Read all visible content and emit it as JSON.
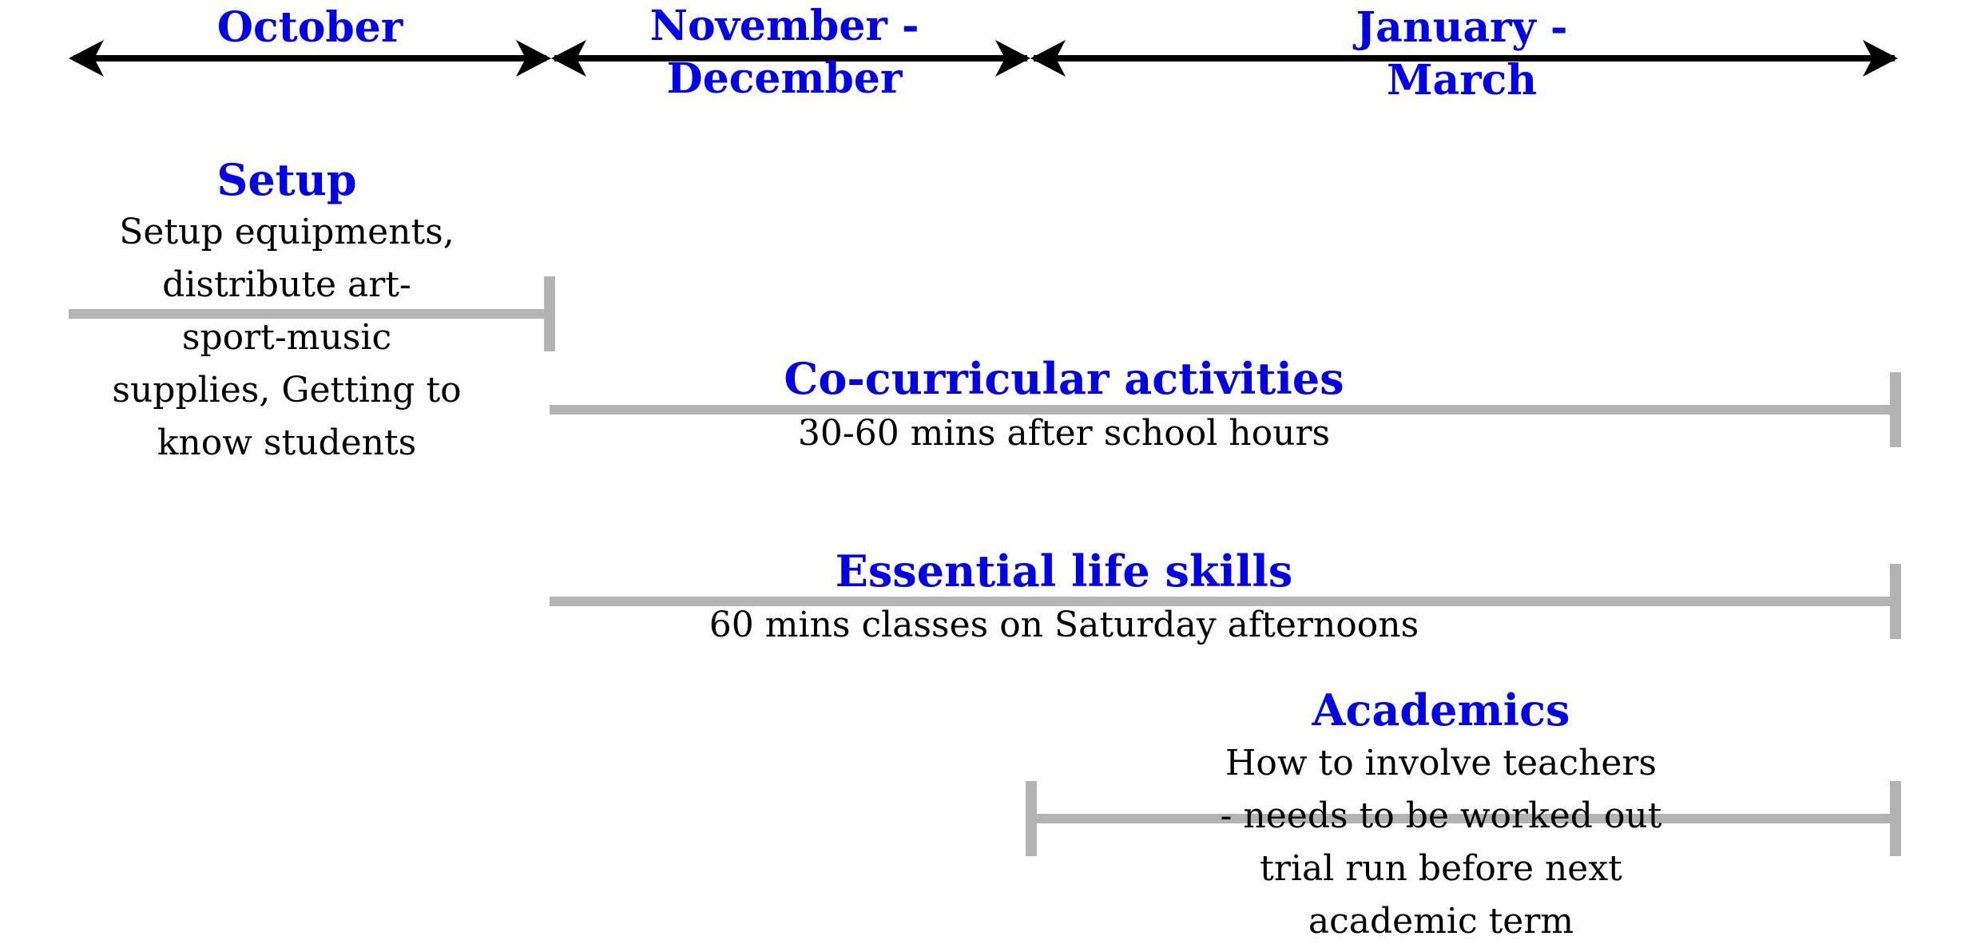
{
  "colors": {
    "heading": "#0000ee",
    "body_text": "#000000",
    "timeline_axis": "#000000",
    "phase_bar": "#b3b3b3",
    "background": "#ffffff"
  },
  "periods": [
    {
      "label": "October"
    },
    {
      "label": "November - December"
    },
    {
      "label": "January - March"
    }
  ],
  "phases": [
    {
      "title": "Setup",
      "description": "Setup equipments, distribute art-sport-music supplies, Getting to know students",
      "start_period": "October",
      "end_period": "October"
    },
    {
      "title": "Co-curricular activities",
      "description": "30-60 mins after school hours",
      "start_period": "November - December",
      "end_period": "January - March"
    },
    {
      "title": "Essential life skills",
      "description": "60 mins classes on Saturday afternoons",
      "start_period": "November - December",
      "end_period": "January - March"
    },
    {
      "title": "Academics",
      "description": "How to involve teachers - needs to be worked out trial run before next academic term",
      "start_period": "January - March",
      "end_period": "January - March"
    }
  ]
}
